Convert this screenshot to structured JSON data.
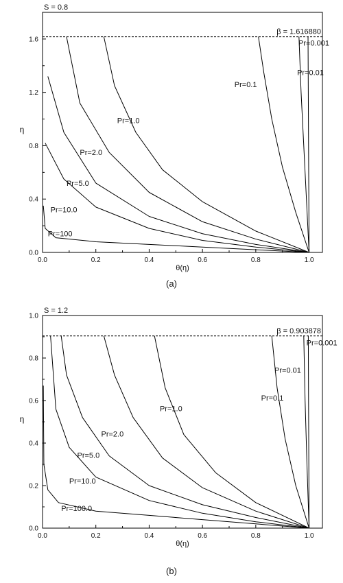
{
  "chart_data": [
    {
      "type": "line",
      "panel_label": "(a)",
      "annotation_top_left": "S = 0.8",
      "beta_label": "β = 1.616880",
      "beta": 1.61688,
      "xlabel": "θ(η)",
      "ylabel": "η",
      "xlim": [
        0.0,
        1.05
      ],
      "ylim": [
        0.0,
        1.8
      ],
      "x_ticks": [
        "0.0",
        "0.2",
        "0.4",
        "0.6",
        "0.8",
        "1.0"
      ],
      "y_ticks": [
        "0.0",
        "0.4",
        "0.8",
        "1.2",
        "1.6"
      ],
      "grid": false,
      "series": [
        {
          "name": "Pr=0.001",
          "curve": [
            [
              1.0,
              0
            ],
            [
              0.999,
              0.4
            ],
            [
              0.998,
              0.8
            ],
            [
              0.997,
              1.2
            ],
            [
              0.996,
              1.617
            ]
          ]
        },
        {
          "name": "Pr=0.01",
          "curve": [
            [
              1.0,
              0
            ],
            [
              0.99,
              0.4
            ],
            [
              0.98,
              0.8
            ],
            [
              0.97,
              1.2
            ],
            [
              0.962,
              1.617
            ]
          ]
        },
        {
          "name": "Pr=0.1",
          "curve": [
            [
              1.0,
              0
            ],
            [
              0.95,
              0.3
            ],
            [
              0.9,
              0.64
            ],
            [
              0.86,
              1.0
            ],
            [
              0.83,
              1.35
            ],
            [
              0.81,
              1.617
            ]
          ]
        },
        {
          "name": "Pr=1.0",
          "curve": [
            [
              1.0,
              0
            ],
            [
              0.8,
              0.16
            ],
            [
              0.6,
              0.38
            ],
            [
              0.45,
              0.62
            ],
            [
              0.35,
              0.9
            ],
            [
              0.27,
              1.25
            ],
            [
              0.23,
              1.617
            ]
          ]
        },
        {
          "name": "Pr=2.0",
          "curve": [
            [
              1.0,
              0
            ],
            [
              0.8,
              0.1
            ],
            [
              0.6,
              0.23
            ],
            [
              0.4,
              0.45
            ],
            [
              0.25,
              0.75
            ],
            [
              0.14,
              1.12
            ],
            [
              0.09,
              1.617
            ]
          ]
        },
        {
          "name": "Pr=5.0",
          "curve": [
            [
              1.0,
              0
            ],
            [
              0.8,
              0.06
            ],
            [
              0.6,
              0.14
            ],
            [
              0.4,
              0.27
            ],
            [
              0.2,
              0.52
            ],
            [
              0.08,
              0.9
            ],
            [
              0.02,
              1.32
            ]
          ]
        },
        {
          "name": "Pr=10.0",
          "curve": [
            [
              1.0,
              0
            ],
            [
              0.8,
              0.04
            ],
            [
              0.6,
              0.09
            ],
            [
              0.4,
              0.18
            ],
            [
              0.2,
              0.34
            ],
            [
              0.08,
              0.55
            ],
            [
              0.01,
              0.82
            ]
          ]
        },
        {
          "name": "Pr=100",
          "curve": [
            [
              1.0,
              0
            ],
            [
              0.8,
              0.02
            ],
            [
              0.6,
              0.04
            ],
            [
              0.4,
              0.06
            ],
            [
              0.2,
              0.08
            ],
            [
              0.05,
              0.11
            ],
            [
              0.01,
              0.18
            ],
            [
              0.003,
              0.35
            ]
          ]
        }
      ],
      "curve_labels": [
        {
          "text": "Pr=0.001",
          "x": 0.96,
          "y": 1.55
        },
        {
          "text": "Pr=0.01",
          "x": 0.955,
          "y": 1.33
        },
        {
          "text": "Pr=0.1",
          "x": 0.72,
          "y": 1.24
        },
        {
          "text": "Pr=1.0",
          "x": 0.28,
          "y": 0.97
        },
        {
          "text": "Pr=2.0",
          "x": 0.14,
          "y": 0.73
        },
        {
          "text": "Pr=5.0",
          "x": 0.09,
          "y": 0.5
        },
        {
          "text": "Pr=10.0",
          "x": 0.03,
          "y": 0.3
        },
        {
          "text": "Pr=100",
          "x": 0.02,
          "y": 0.12
        }
      ]
    },
    {
      "type": "line",
      "panel_label": "(b)",
      "annotation_top_left": "S = 1.2",
      "beta_label": "β = 0.903878",
      "beta": 0.903878,
      "xlabel": "θ(η)",
      "ylabel": "η",
      "xlim": [
        0.0,
        1.05
      ],
      "ylim": [
        0.0,
        1.0
      ],
      "x_ticks": [
        "0.0",
        "0.2",
        "0.4",
        "0.6",
        "0.8",
        "1.0"
      ],
      "y_ticks": [
        "0.0",
        "0.2",
        "0.4",
        "0.6",
        "0.8",
        "1.0"
      ],
      "grid": false,
      "series": [
        {
          "name": "Pr=0.001",
          "curve": [
            [
              1.0,
              0
            ],
            [
              0.999,
              0.3
            ],
            [
              0.998,
              0.6
            ],
            [
              0.997,
              0.904
            ]
          ]
        },
        {
          "name": "Pr=0.01",
          "curve": [
            [
              1.0,
              0
            ],
            [
              0.992,
              0.3
            ],
            [
              0.985,
              0.6
            ],
            [
              0.98,
              0.904
            ]
          ]
        },
        {
          "name": "Pr=0.1",
          "curve": [
            [
              1.0,
              0
            ],
            [
              0.95,
              0.2
            ],
            [
              0.91,
              0.42
            ],
            [
              0.88,
              0.66
            ],
            [
              0.86,
              0.904
            ]
          ]
        },
        {
          "name": "Pr=1.0",
          "curve": [
            [
              1.0,
              0
            ],
            [
              0.8,
              0.12
            ],
            [
              0.65,
              0.26
            ],
            [
              0.53,
              0.44
            ],
            [
              0.46,
              0.66
            ],
            [
              0.42,
              0.904
            ]
          ]
        },
        {
          "name": "Pr=2.0",
          "curve": [
            [
              1.0,
              0
            ],
            [
              0.8,
              0.08
            ],
            [
              0.6,
              0.19
            ],
            [
              0.45,
              0.33
            ],
            [
              0.34,
              0.52
            ],
            [
              0.27,
              0.72
            ],
            [
              0.23,
              0.904
            ]
          ]
        },
        {
          "name": "Pr=5.0",
          "curve": [
            [
              1.0,
              0
            ],
            [
              0.8,
              0.05
            ],
            [
              0.6,
              0.11
            ],
            [
              0.4,
              0.2
            ],
            [
              0.25,
              0.34
            ],
            [
              0.15,
              0.52
            ],
            [
              0.09,
              0.72
            ],
            [
              0.07,
              0.904
            ]
          ]
        },
        {
          "name": "Pr=10.0",
          "curve": [
            [
              1.0,
              0
            ],
            [
              0.8,
              0.03
            ],
            [
              0.6,
              0.07
            ],
            [
              0.4,
              0.13
            ],
            [
              0.2,
              0.24
            ],
            [
              0.1,
              0.38
            ],
            [
              0.05,
              0.56
            ],
            [
              0.03,
              0.904
            ]
          ]
        },
        {
          "name": "Pr=100.0",
          "curve": [
            [
              1.0,
              0
            ],
            [
              0.8,
              0.02
            ],
            [
              0.6,
              0.04
            ],
            [
              0.4,
              0.06
            ],
            [
              0.2,
              0.08
            ],
            [
              0.06,
              0.12
            ],
            [
              0.02,
              0.18
            ],
            [
              0.005,
              0.3
            ],
            [
              0.003,
              0.67
            ]
          ]
        }
      ],
      "curve_labels": [
        {
          "text": "Pr=0.001",
          "x": 0.99,
          "y": 0.86
        },
        {
          "text": "Pr=0.01",
          "x": 0.87,
          "y": 0.73
        },
        {
          "text": "Pr=0.1",
          "x": 0.82,
          "y": 0.6
        },
        {
          "text": "Pr=1.0",
          "x": 0.44,
          "y": 0.55
        },
        {
          "text": "Pr=2.0",
          "x": 0.22,
          "y": 0.43
        },
        {
          "text": "Pr=5.0",
          "x": 0.13,
          "y": 0.33
        },
        {
          "text": "Pr=10.0",
          "x": 0.1,
          "y": 0.21
        },
        {
          "text": "Pr=100.0",
          "x": 0.07,
          "y": 0.08
        }
      ]
    }
  ]
}
